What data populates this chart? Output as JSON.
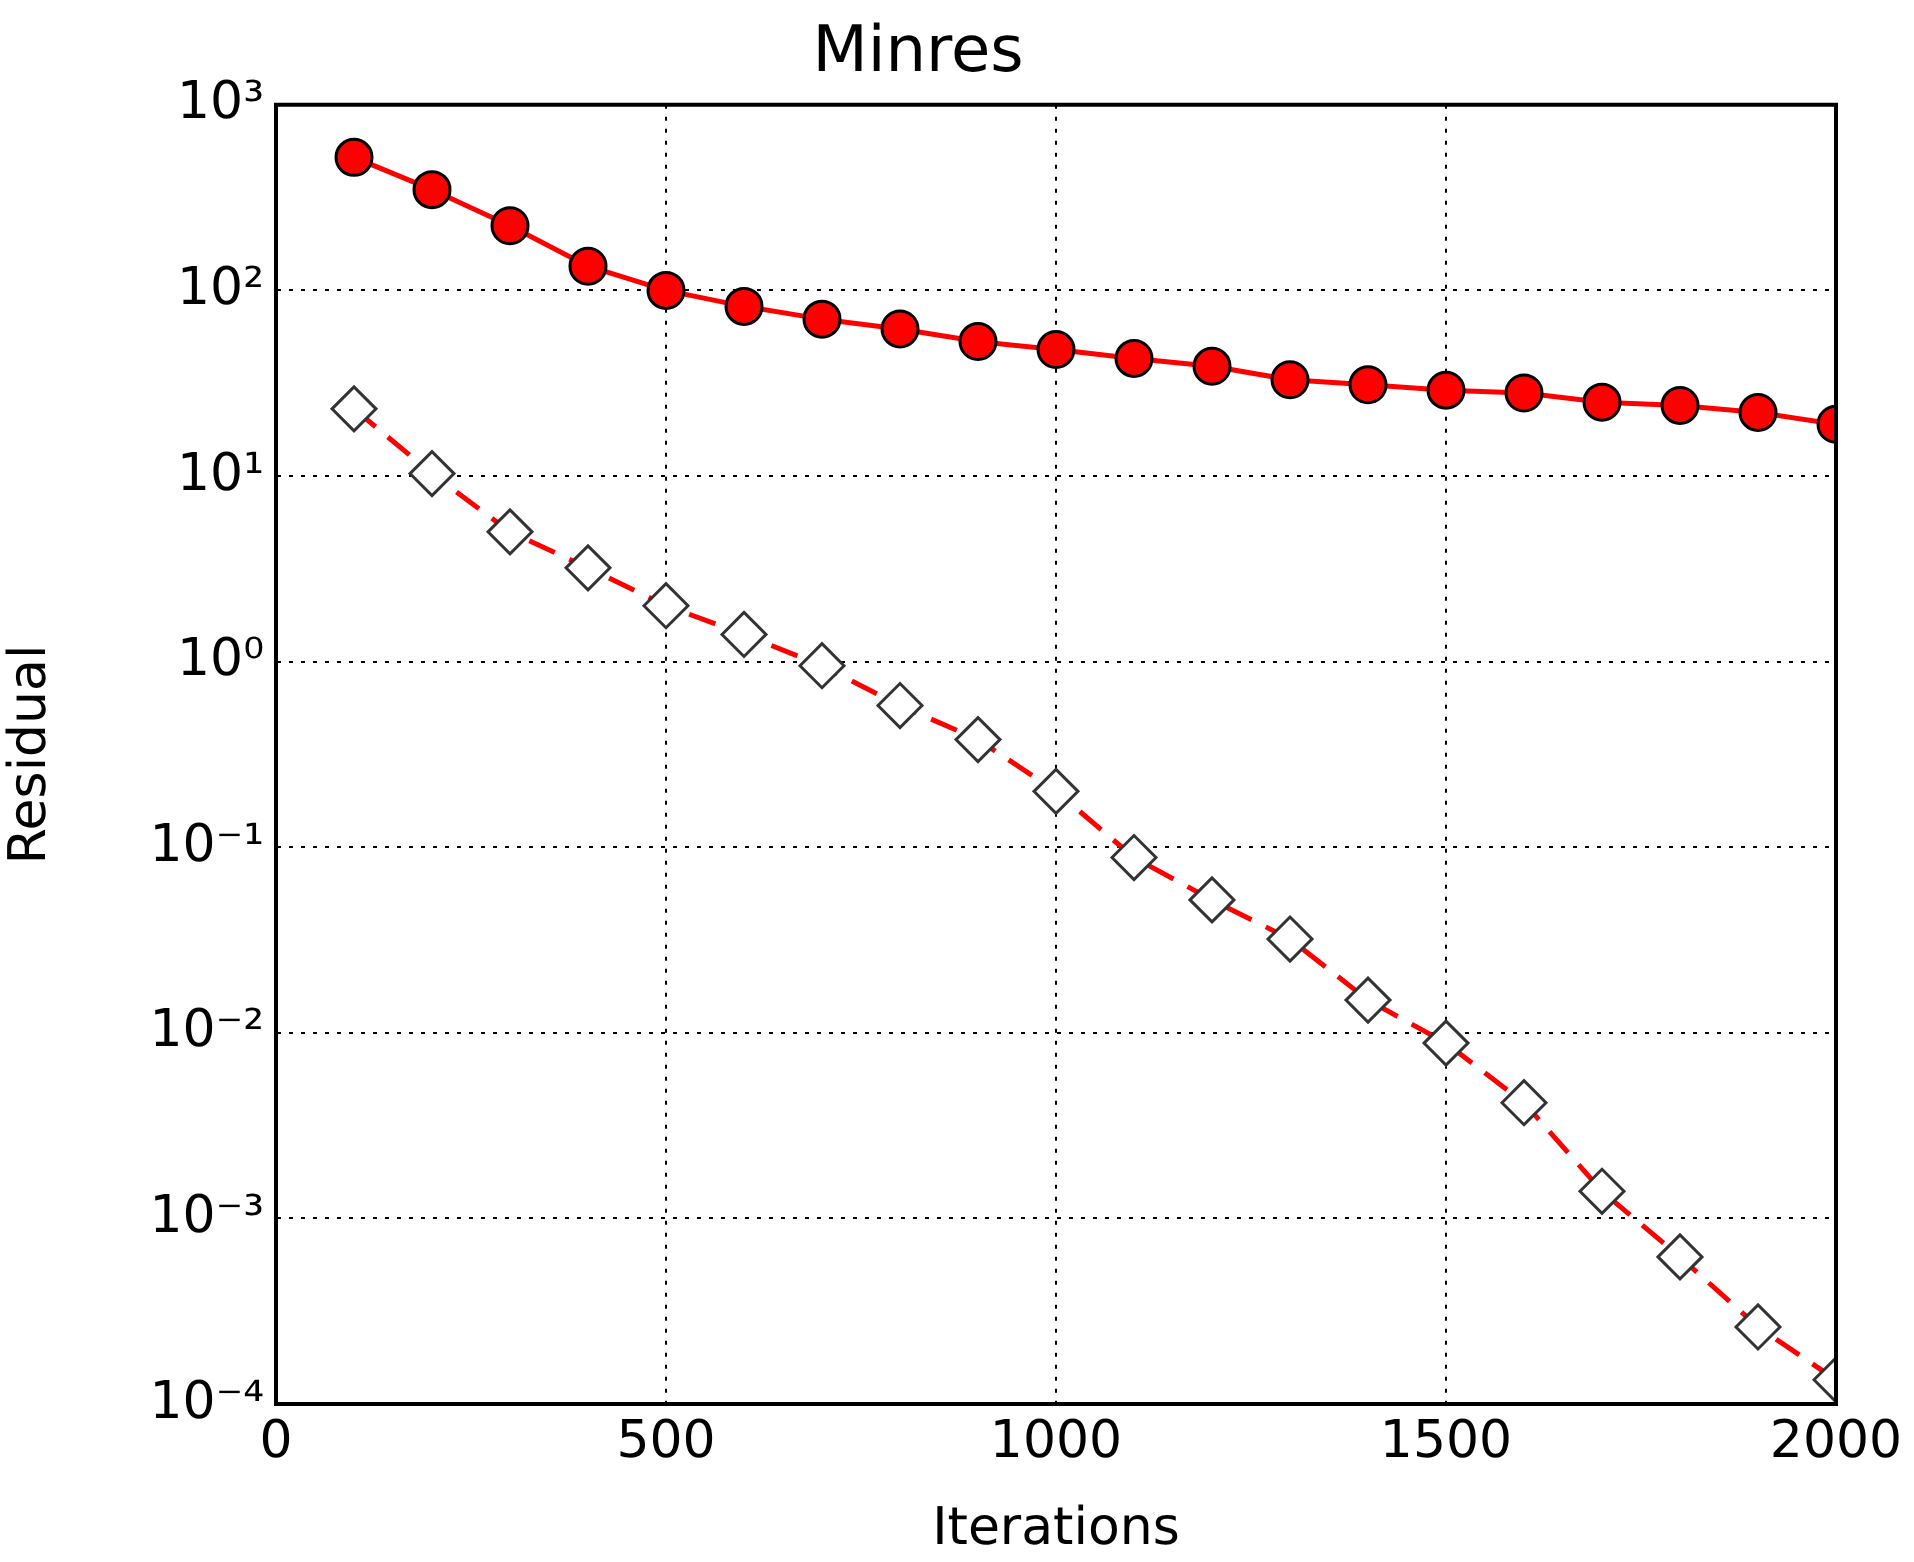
{
  "chart_data": {
    "type": "line",
    "title": "Minres",
    "xlabel": "Iterations",
    "ylabel": "Residual",
    "log": "y",
    "grid": true,
    "legend": false,
    "x": [
      100,
      200,
      300,
      400,
      500,
      600,
      700,
      800,
      900,
      1000,
      1100,
      1200,
      1300,
      1400,
      1500,
      1600,
      1700,
      1800,
      1900,
      2000
    ],
    "xlim": [
      0,
      2000
    ],
    "xticks": [
      0,
      500,
      1000,
      1500,
      2000
    ],
    "ylim": [
      0.0001,
      1000
    ],
    "yticks": [
      {
        "value": 0.0001,
        "label": "10⁻⁴"
      },
      {
        "value": 0.001,
        "label": "10⁻³"
      },
      {
        "value": 0.01,
        "label": "10⁻²"
      },
      {
        "value": 0.1,
        "label": "10⁻¹"
      },
      {
        "value": 1,
        "label": "10⁰"
      },
      {
        "value": 10,
        "label": "10¹"
      },
      {
        "value": 100,
        "label": "10²"
      },
      {
        "value": 1000,
        "label": "10³"
      }
    ],
    "series": [
      {
        "color": "#ff0000",
        "marker": "circle",
        "line_style": "solid",
        "values": [
          521,
          349,
          223,
          135,
          100,
          82,
          70,
          62,
          53,
          48,
          43,
          39,
          33,
          31,
          29,
          28,
          25,
          24,
          22,
          19
        ]
      },
      {
        "color": "#ff0000",
        "marker": "diamond",
        "line_style": "dashed",
        "values": [
          23,
          10.3,
          5.0,
          3.2,
          2.0,
          1.4,
          0.95,
          0.58,
          0.38,
          0.2,
          0.088,
          0.052,
          0.032,
          0.015,
          0.0088,
          0.0042,
          0.0014,
          0.00062,
          0.00026,
          0.000135
        ]
      }
    ]
  }
}
